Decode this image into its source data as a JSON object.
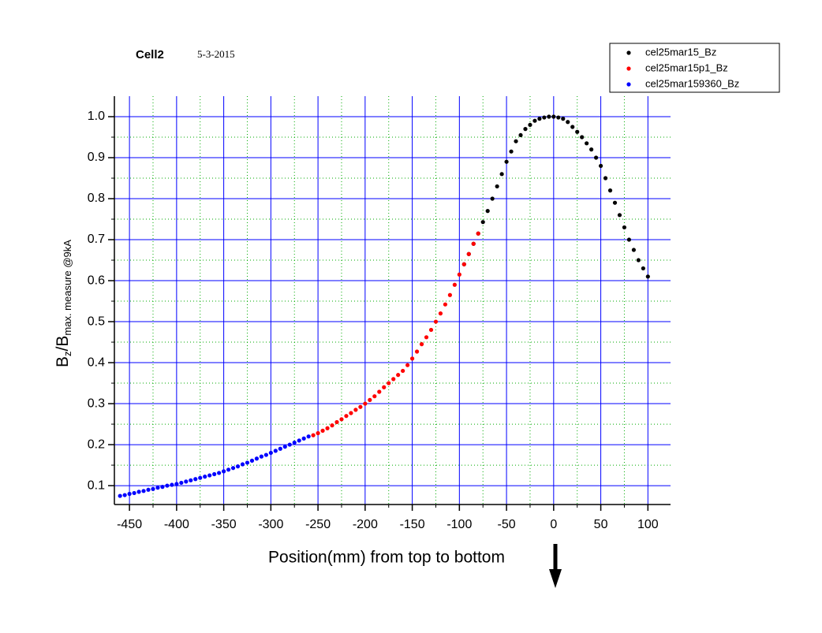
{
  "chart_data": {
    "type": "scatter",
    "title": "Cell2",
    "subtitle": "5-3-2015",
    "x_label": "Position(mm) from top to bottom",
    "y_label_parts": [
      "B",
      "z",
      "/B",
      "max. measure @9kA"
    ],
    "xlim": [
      -466,
      124
    ],
    "ylim": [
      0.054,
      1.05
    ],
    "xticks": [
      -450,
      -400,
      -350,
      -300,
      -250,
      -200,
      -150,
      -100,
      -50,
      0,
      50,
      100
    ],
    "yticks": [
      0.1,
      0.2,
      0.3,
      0.4,
      0.5,
      0.6,
      0.7,
      0.8,
      0.9,
      {
        "value": 1.0,
        "label": "1.0"
      }
    ],
    "minor_xticks": [
      -425,
      -375,
      -325,
      -275,
      -225,
      -175,
      -125,
      -75,
      -25,
      25,
      75
    ],
    "minor_yticks": [
      0.15,
      0.25,
      0.35,
      0.45,
      0.55,
      0.65,
      0.75,
      0.85,
      0.95
    ],
    "grid": true,
    "grid_color": "#0000ff",
    "minor_grid_color": "#00aa00",
    "legend_position": "top-right",
    "series": [
      {
        "name": "cel25mar15_Bz",
        "color": "#000000",
        "x": [
          -95,
          -90,
          -85,
          -80,
          -75,
          -70,
          -65,
          -60,
          -55,
          -50,
          -45,
          -40,
          -35,
          -30,
          -25,
          -20,
          -15,
          -10,
          -5,
          0,
          5,
          10,
          15,
          20,
          25,
          30,
          35,
          40,
          45,
          50,
          55,
          60,
          65,
          70,
          75,
          80,
          85,
          90,
          95,
          100
        ],
        "values": [
          0.64,
          0.665,
          0.69,
          0.715,
          0.743,
          0.77,
          0.8,
          0.83,
          0.86,
          0.89,
          0.915,
          0.94,
          0.955,
          0.97,
          0.98,
          0.99,
          0.995,
          0.998,
          1.0,
          1.0,
          0.998,
          0.995,
          0.987,
          0.975,
          0.963,
          0.95,
          0.935,
          0.92,
          0.9,
          0.88,
          0.85,
          0.82,
          0.79,
          0.76,
          0.73,
          0.7,
          0.675,
          0.65,
          0.63,
          0.61
        ]
      },
      {
        "name": "cel25mar15p1_Bz",
        "color": "#ff0000",
        "x": [
          -255,
          -250,
          -245,
          -240,
          -235,
          -230,
          -225,
          -220,
          -215,
          -210,
          -205,
          -200,
          -195,
          -190,
          -185,
          -180,
          -175,
          -170,
          -165,
          -160,
          -155,
          -150,
          -145,
          -140,
          -135,
          -130,
          -125,
          -120,
          -115,
          -110,
          -105,
          -100,
          -95,
          -90,
          -85,
          -80
        ],
        "values": [
          0.223,
          0.228,
          0.234,
          0.24,
          0.247,
          0.255,
          0.262,
          0.27,
          0.277,
          0.285,
          0.292,
          0.3,
          0.309,
          0.318,
          0.329,
          0.34,
          0.35,
          0.36,
          0.37,
          0.38,
          0.394,
          0.41,
          0.427,
          0.445,
          0.462,
          0.48,
          0.5,
          0.52,
          0.542,
          0.565,
          0.59,
          0.615,
          0.64,
          0.665,
          0.69,
          0.715
        ]
      },
      {
        "name": "cel25mar159360_Bz",
        "color": "#0000ff",
        "x": [
          -460,
          -455,
          -450,
          -445,
          -440,
          -435,
          -430,
          -425,
          -420,
          -415,
          -410,
          -405,
          -400,
          -395,
          -390,
          -385,
          -380,
          -375,
          -370,
          -365,
          -360,
          -355,
          -350,
          -345,
          -340,
          -335,
          -330,
          -325,
          -320,
          -315,
          -310,
          -305,
          -300,
          -295,
          -290,
          -285,
          -280,
          -275,
          -270,
          -265,
          -260
        ],
        "values": [
          0.075,
          0.077,
          0.08,
          0.082,
          0.085,
          0.087,
          0.09,
          0.092,
          0.095,
          0.097,
          0.1,
          0.102,
          0.104,
          0.107,
          0.11,
          0.113,
          0.116,
          0.119,
          0.122,
          0.125,
          0.128,
          0.131,
          0.135,
          0.139,
          0.143,
          0.147,
          0.152,
          0.156,
          0.161,
          0.166,
          0.171,
          0.175,
          0.18,
          0.185,
          0.19,
          0.195,
          0.2,
          0.205,
          0.21,
          0.215,
          0.22
        ]
      }
    ]
  }
}
